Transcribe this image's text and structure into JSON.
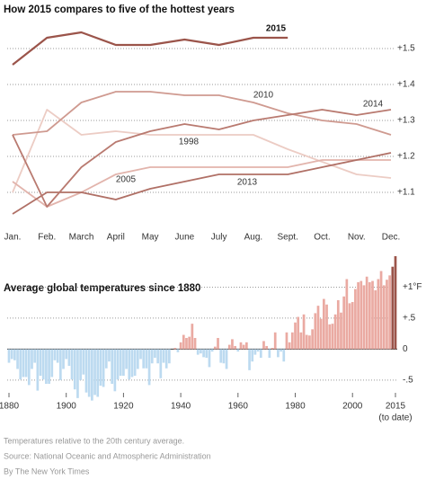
{
  "chart_data": [
    {
      "type": "line",
      "title": "How 2015 compares to five of the hottest years",
      "categories": [
        "Jan.",
        "Feb.",
        "March",
        "April",
        "May",
        "June",
        "July",
        "Aug.",
        "Sept.",
        "Oct.",
        "Nov.",
        "Dec."
      ],
      "ylim": [
        1.02,
        1.58
      ],
      "yticks": [
        {
          "value": 1.1,
          "label": "+1.1"
        },
        {
          "value": 1.2,
          "label": "+1.2"
        },
        {
          "value": 1.3,
          "label": "+1.3"
        },
        {
          "value": 1.4,
          "label": "+1.4"
        },
        {
          "value": 1.5,
          "label": "+1.5"
        }
      ],
      "grid": true,
      "series": [
        {
          "name": "1998",
          "color": "#ecccc4",
          "values": [
            1.1,
            1.33,
            1.26,
            1.27,
            1.26,
            1.26,
            1.26,
            1.26,
            1.22,
            1.185,
            1.15,
            1.14
          ]
        },
        {
          "name": "2005",
          "color": "#e2b4ac",
          "values": [
            1.13,
            1.06,
            1.1,
            1.15,
            1.17,
            1.17,
            1.17,
            1.17,
            1.17,
            1.19,
            1.19,
            1.19
          ]
        },
        {
          "name": "2010",
          "color": "#cf9a90",
          "values": [
            1.26,
            1.27,
            1.35,
            1.38,
            1.38,
            1.37,
            1.37,
            1.35,
            1.32,
            1.3,
            1.29,
            1.26
          ]
        },
        {
          "name": "2013",
          "color": "#b07066",
          "values": [
            1.04,
            1.1,
            1.1,
            1.08,
            1.11,
            1.13,
            1.15,
            1.15,
            1.15,
            1.17,
            1.19,
            1.21
          ]
        },
        {
          "name": "2014",
          "color": "#b97a70",
          "values": [
            1.26,
            1.06,
            1.17,
            1.24,
            1.27,
            1.29,
            1.275,
            1.3,
            1.315,
            1.33,
            1.315,
            1.33
          ]
        },
        {
          "name": "2015",
          "color": "#9b544a",
          "values": [
            1.455,
            1.53,
            1.545,
            1.51,
            1.51,
            1.525,
            1.51,
            1.53,
            1.53,
            null,
            null,
            null
          ]
        }
      ]
    },
    {
      "type": "bar",
      "title": "Average global temperatures since 1880",
      "x": [
        1880,
        1881,
        1882,
        1883,
        1884,
        1885,
        1886,
        1887,
        1888,
        1889,
        1890,
        1891,
        1892,
        1893,
        1894,
        1895,
        1896,
        1897,
        1898,
        1899,
        1900,
        1901,
        1902,
        1903,
        1904,
        1905,
        1906,
        1907,
        1908,
        1909,
        1910,
        1911,
        1912,
        1913,
        1914,
        1915,
        1916,
        1917,
        1918,
        1919,
        1920,
        1921,
        1922,
        1923,
        1924,
        1925,
        1926,
        1927,
        1928,
        1929,
        1930,
        1931,
        1932,
        1933,
        1934,
        1935,
        1936,
        1937,
        1938,
        1939,
        1940,
        1941,
        1942,
        1943,
        1944,
        1945,
        1946,
        1947,
        1948,
        1949,
        1950,
        1951,
        1952,
        1953,
        1954,
        1955,
        1956,
        1957,
        1958,
        1959,
        1960,
        1961,
        1962,
        1963,
        1964,
        1965,
        1966,
        1967,
        1968,
        1969,
        1970,
        1971,
        1972,
        1973,
        1974,
        1975,
        1976,
        1977,
        1978,
        1979,
        1980,
        1981,
        1982,
        1983,
        1984,
        1985,
        1986,
        1987,
        1988,
        1989,
        1990,
        1991,
        1992,
        1993,
        1994,
        1995,
        1996,
        1997,
        1998,
        1999,
        2000,
        2001,
        2002,
        2003,
        2004,
        2005,
        2006,
        2007,
        2008,
        2009,
        2010,
        2011,
        2012,
        2013,
        2014,
        2015
      ],
      "values": [
        -0.22,
        -0.16,
        -0.18,
        -0.32,
        -0.49,
        -0.45,
        -0.45,
        -0.58,
        -0.32,
        -0.22,
        -0.67,
        -0.43,
        -0.49,
        -0.56,
        -0.56,
        -0.45,
        -0.18,
        -0.22,
        -0.5,
        -0.32,
        -0.16,
        -0.27,
        -0.49,
        -0.65,
        -0.79,
        -0.5,
        -0.41,
        -0.7,
        -0.77,
        -0.83,
        -0.74,
        -0.77,
        -0.59,
        -0.61,
        -0.31,
        -0.2,
        -0.56,
        -0.68,
        -0.49,
        -0.43,
        -0.43,
        -0.32,
        -0.49,
        -0.45,
        -0.43,
        -0.32,
        -0.16,
        -0.31,
        -0.31,
        -0.58,
        -0.23,
        -0.14,
        -0.23,
        -0.47,
        -0.22,
        -0.31,
        -0.23,
        0,
        0.02,
        -0.05,
        0.11,
        0.23,
        0.18,
        0.2,
        0.41,
        0.18,
        -0.09,
        -0.07,
        -0.13,
        -0.14,
        -0.29,
        -0.04,
        0.04,
        0.18,
        -0.22,
        -0.23,
        -0.32,
        0.07,
        0.16,
        0.05,
        -0.04,
        0.11,
        0.07,
        0.11,
        -0.34,
        -0.2,
        -0.09,
        -0.04,
        -0.14,
        0.13,
        0.05,
        -0.14,
        0.02,
        0.27,
        -0.13,
        -0.04,
        -0.2,
        0.27,
        0.11,
        0.27,
        0.43,
        0.52,
        0.27,
        0.56,
        0.23,
        0.22,
        0.32,
        0.58,
        0.7,
        0.49,
        0.81,
        0.72,
        0.4,
        0.41,
        0.56,
        0.79,
        0.59,
        0.85,
        1.13,
        0.74,
        0.76,
        0.97,
        1.08,
        1.1,
        1.03,
        1.17,
        1.08,
        1.1,
        0.95,
        1.13,
        1.26,
        1.03,
        1.12,
        1.19,
        1.33,
        1.5
      ],
      "color_positive": "#eaaaa2",
      "color_negative": "#bcdaf0",
      "highlight_color": "#9b544a",
      "highlight_x": [
        2014,
        2015
      ],
      "xlim": [
        1880,
        2015
      ],
      "xticks": [
        1880,
        1900,
        1920,
        1940,
        1960,
        1980,
        2000,
        2015
      ],
      "xtick_note": "(to date)",
      "ylim": [
        -0.85,
        1.5
      ],
      "yticks": [
        {
          "value": -0.5,
          "label": "-.5"
        },
        0,
        {
          "value": 0.5,
          "label": "+.5"
        },
        {
          "value": 1,
          "label": "+1°F"
        }
      ],
      "grid": true
    }
  ],
  "footer": [
    "Temperatures relative to the 20th century average.",
    "Source: National Oceanic and Atmospheric Administration",
    "By The New York Times"
  ]
}
